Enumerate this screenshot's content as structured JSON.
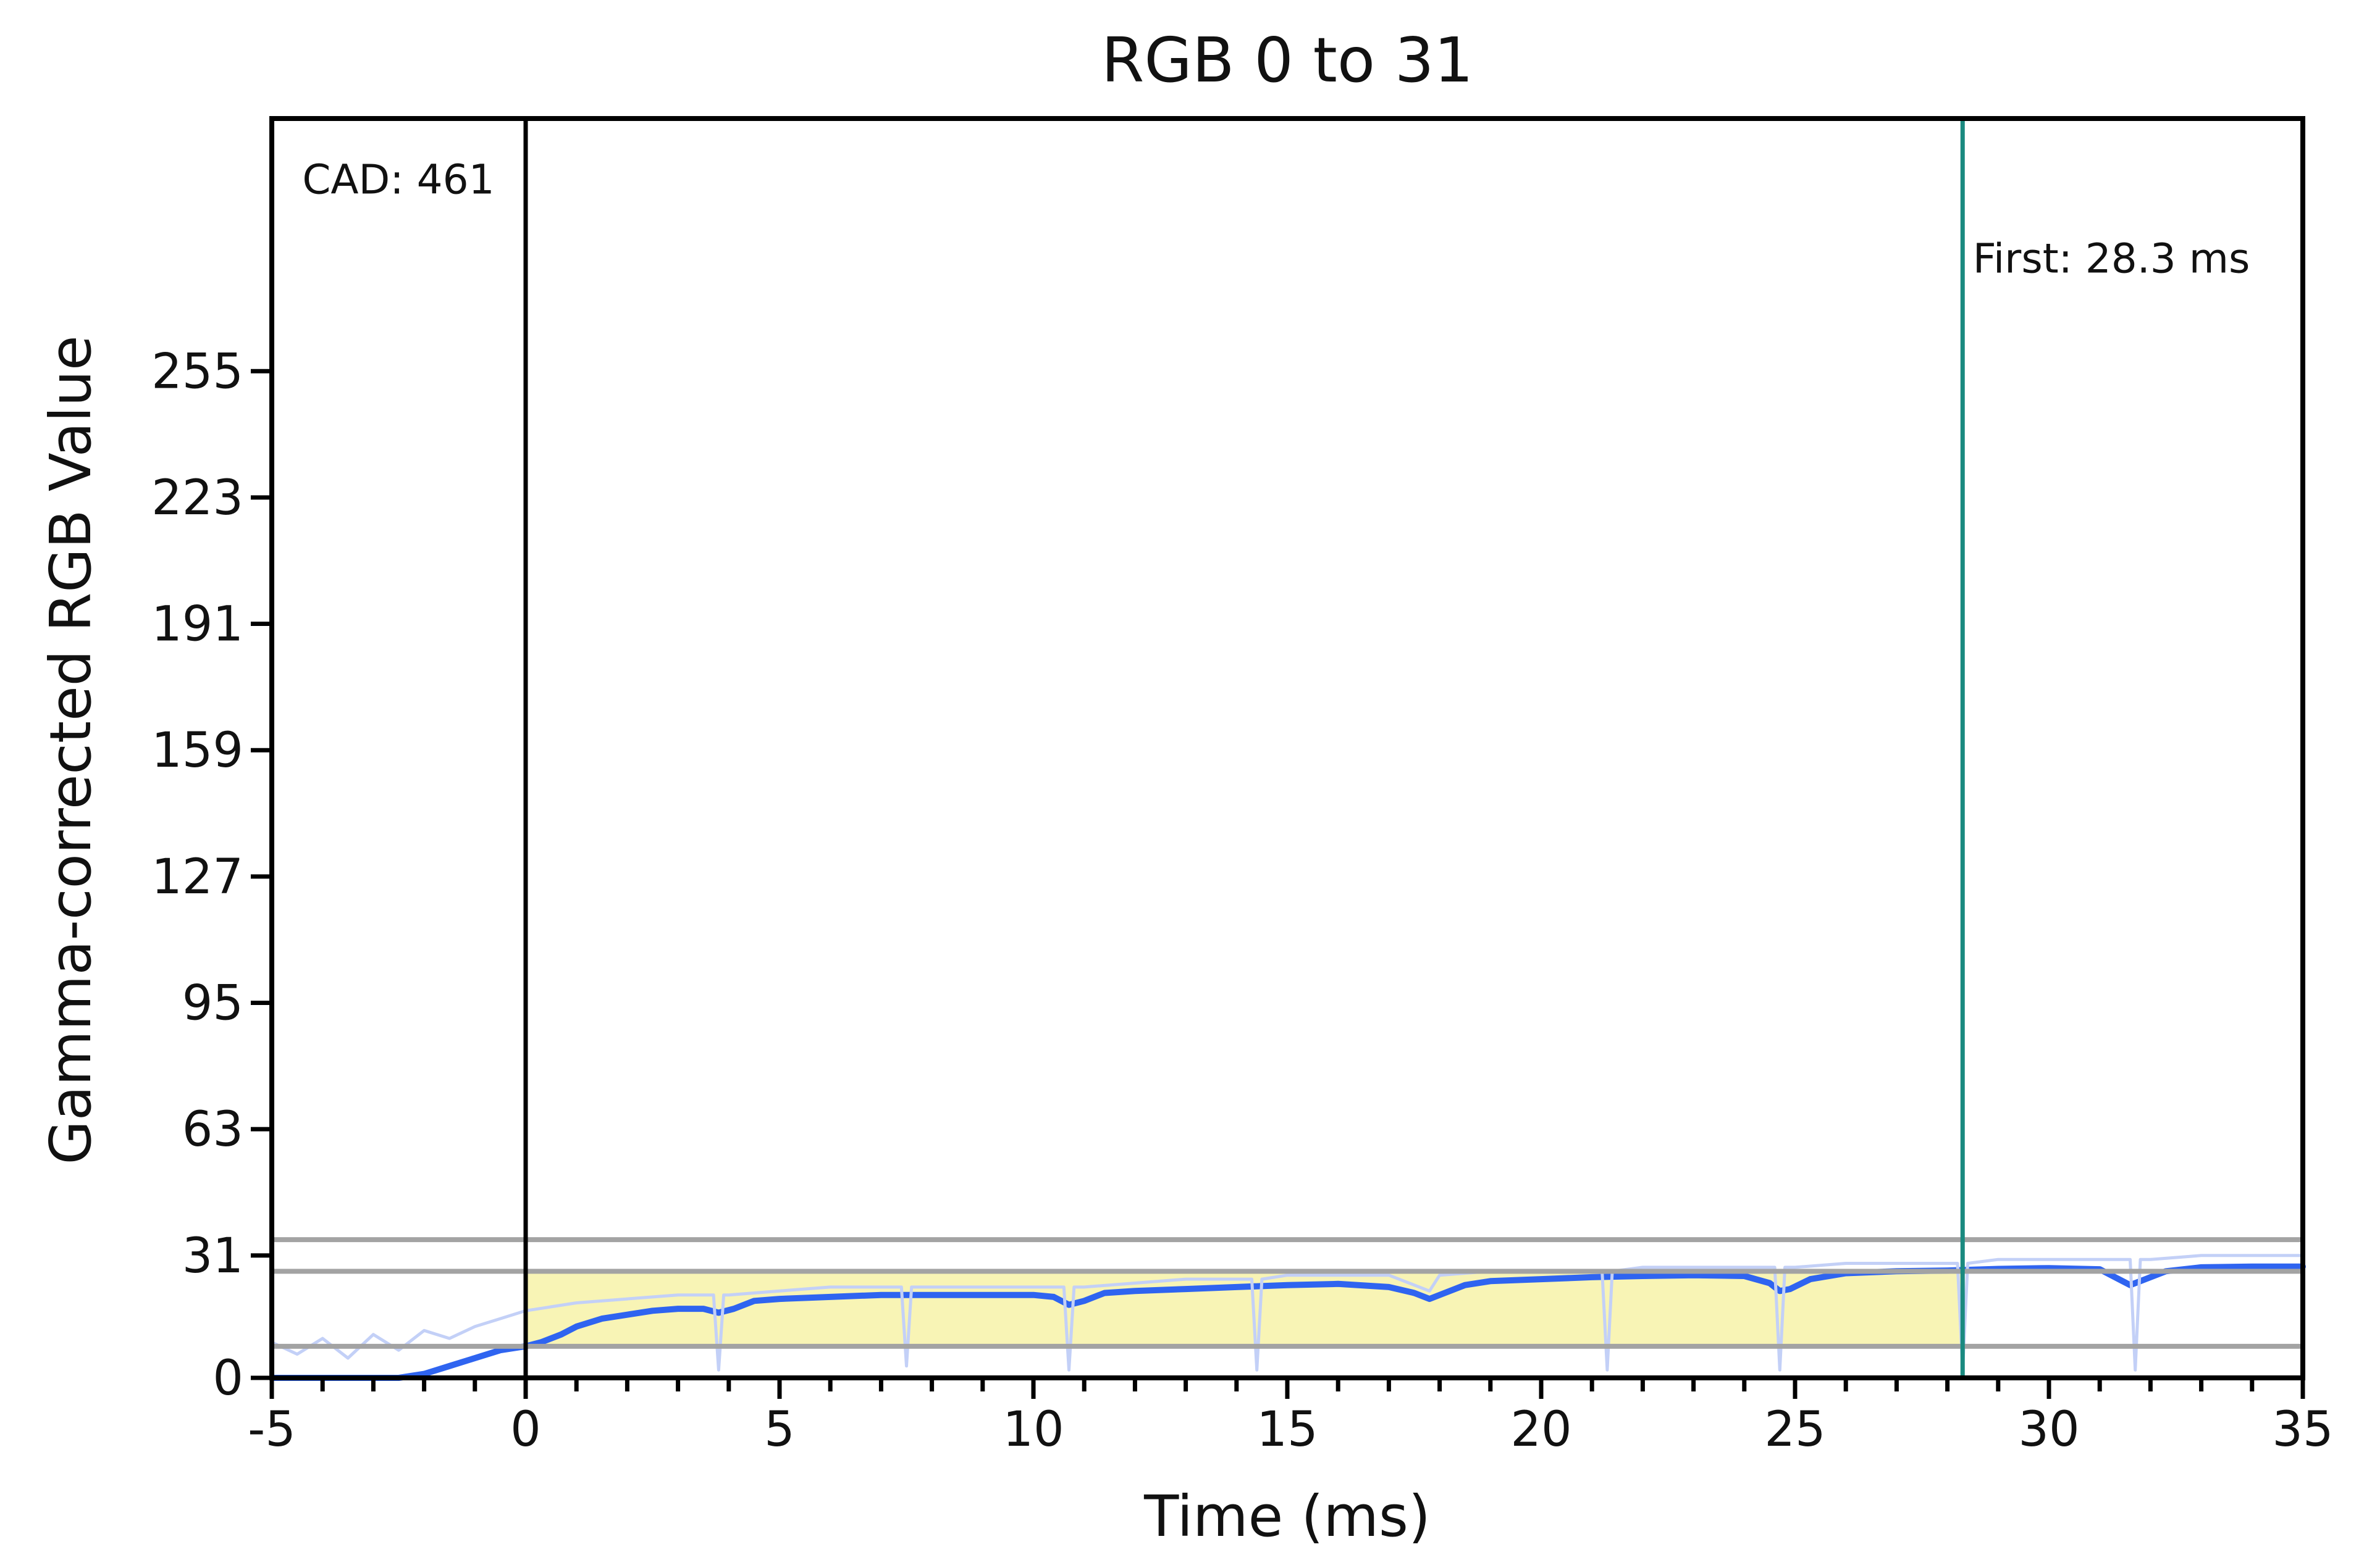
{
  "chart_data": {
    "type": "line",
    "title": "RGB 0 to 31",
    "xlabel": "Time (ms)",
    "ylabel": "Gamma-corrected RGB Value",
    "xlim": [
      -5,
      35
    ],
    "ylim": [
      0,
      319
    ],
    "x_ticks": [
      -5,
      0,
      5,
      10,
      15,
      20,
      25,
      30,
      35
    ],
    "x_tick_labels": [
      "-5",
      "0",
      "5",
      "10",
      "15",
      "20",
      "25",
      "30",
      "35"
    ],
    "y_ticks": [
      0,
      31,
      63,
      95,
      127,
      159,
      191,
      223,
      255
    ],
    "y_tick_labels": [
      "0",
      "31",
      "63",
      "95",
      "127",
      "159",
      "191",
      "223",
      "255"
    ],
    "grid": false,
    "reference_lines": [
      {
        "y": 35
      },
      {
        "y": 27
      },
      {
        "y": 8
      }
    ],
    "vertical_lines": [
      {
        "x": 0,
        "color": "#000000"
      },
      {
        "x": 28.3,
        "color": "#1a8a80"
      }
    ],
    "highlight_band": {
      "x_start": 0,
      "x_end": 28.3,
      "y_low": 8,
      "y_high": 27,
      "color": "#f7f2a8"
    },
    "annotations": [
      {
        "text": "CAD: 461",
        "x": -4.4,
        "y": 300
      },
      {
        "text": "First: 28.3 ms",
        "x": 28.5,
        "y": 280
      }
    ],
    "series": [
      {
        "type": "smoothed",
        "color": "#2f64f0",
        "x": [
          -5,
          -4,
          -3,
          -2.5,
          -2,
          -1.5,
          -1,
          -0.5,
          0,
          0.3,
          0.7,
          1,
          1.5,
          2,
          2.5,
          3,
          3.5,
          3.8,
          4.1,
          4.5,
          5,
          6,
          7,
          8,
          9,
          10,
          10.4,
          10.7,
          11,
          11.4,
          12,
          13,
          14,
          15,
          16,
          17,
          17.5,
          17.8,
          18.1,
          18.5,
          19,
          20,
          21,
          22,
          23,
          24,
          24.5,
          24.7,
          24.9,
          25.3,
          26,
          27,
          28,
          29,
          30,
          31,
          31.3,
          31.6,
          31.9,
          32.3,
          33,
          34,
          35
        ],
        "values": [
          0,
          0,
          0,
          0,
          1,
          3,
          5,
          7,
          8,
          9,
          11,
          13,
          15,
          16,
          17,
          17.5,
          17.5,
          16.5,
          17.5,
          19.5,
          20,
          20.5,
          21,
          21,
          21,
          21,
          20.5,
          18.5,
          19.5,
          21.5,
          22,
          22.5,
          23,
          23.5,
          23.8,
          23,
          21.5,
          20,
          21.5,
          23.5,
          24.5,
          25,
          25.5,
          25.8,
          26,
          25.8,
          24,
          22,
          22.5,
          25,
          26.5,
          27,
          27.2,
          27.6,
          27.8,
          27.5,
          25.5,
          23.5,
          25,
          27,
          28,
          28.2,
          28.2
        ]
      },
      {
        "type": "raw",
        "color": "#c3d0f7",
        "x": [
          -5,
          -4.5,
          -4,
          -3.5,
          -3,
          -2.5,
          -2,
          -1.5,
          -1,
          -0.5,
          0,
          0.5,
          1,
          2,
          3,
          3.7,
          3.8,
          3.9,
          4,
          5,
          6,
          7,
          7.4,
          7.5,
          7.6,
          8,
          9,
          10,
          10.6,
          10.7,
          10.8,
          11,
          12,
          13,
          14,
          14.3,
          14.4,
          14.5,
          15,
          16,
          17,
          17.8,
          18,
          19,
          20,
          21,
          21.2,
          21.3,
          21.4,
          22,
          23,
          24,
          24.6,
          24.7,
          24.8,
          25,
          26,
          27,
          28,
          28.2,
          28.3,
          28.4,
          29,
          30,
          31,
          31.6,
          31.7,
          31.8,
          32,
          33,
          34,
          35
        ],
        "values": [
          9,
          6,
          10,
          5,
          11,
          7,
          12,
          10,
          13,
          15,
          17,
          18,
          19,
          20,
          21,
          21,
          2,
          21,
          21,
          22,
          23,
          23,
          23,
          3,
          23,
          23,
          23,
          23,
          23,
          2,
          23,
          23,
          24,
          25,
          25,
          25,
          2,
          25,
          26,
          26,
          26,
          22,
          26,
          27,
          27,
          27,
          27,
          2,
          27,
          28,
          28,
          28,
          28,
          2,
          28,
          28,
          29,
          29,
          29,
          29,
          2,
          29,
          30,
          30,
          30,
          30,
          2,
          30,
          30,
          31,
          31,
          31
        ]
      }
    ]
  }
}
